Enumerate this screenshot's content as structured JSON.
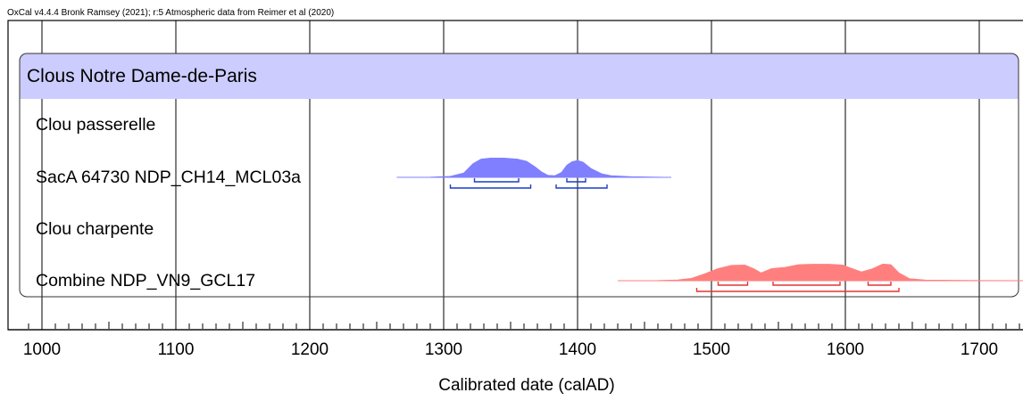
{
  "header_text": "OxCal v4.4.4 Bronk Ramsey (2021); r:5 Atmospheric data from Reimer et al (2020)",
  "chart_data": {
    "type": "multiplot",
    "xlabel": "Calibrated date (calAD)",
    "xlim": [
      980,
      1740
    ],
    "xticks": [
      1000,
      1100,
      1200,
      1300,
      1400,
      1500,
      1600,
      1700
    ],
    "tick_labels": [
      "1000",
      "1100",
      "1200",
      "1300",
      "1400",
      "1500",
      "1600",
      "1700"
    ],
    "grid": true,
    "group": {
      "label": "Clous Notre Dame-de-Paris",
      "color": "#ccccff"
    },
    "rows": [
      {
        "label": "Clou passerelle",
        "kind": "header"
      },
      {
        "label": "SacA 64730 NDP_CH14_MCL03a",
        "kind": "distribution",
        "color": "#7f7fff",
        "bracket_color": "#1a3ccc",
        "density": [
          [
            1265,
            0
          ],
          [
            1290,
            0.01
          ],
          [
            1305,
            0.05
          ],
          [
            1315,
            0.22
          ],
          [
            1322,
            0.7
          ],
          [
            1328,
            0.93
          ],
          [
            1335,
            0.98
          ],
          [
            1345,
            0.98
          ],
          [
            1355,
            0.93
          ],
          [
            1362,
            0.82
          ],
          [
            1368,
            0.55
          ],
          [
            1373,
            0.28
          ],
          [
            1378,
            0.1
          ],
          [
            1383,
            0.08
          ],
          [
            1388,
            0.25
          ],
          [
            1392,
            0.62
          ],
          [
            1396,
            0.8
          ],
          [
            1400,
            0.86
          ],
          [
            1404,
            0.78
          ],
          [
            1410,
            0.45
          ],
          [
            1418,
            0.18
          ],
          [
            1425,
            0.08
          ],
          [
            1440,
            0.03
          ],
          [
            1470,
            0
          ]
        ],
        "hpd_68": [
          [
            1323,
            1356
          ],
          [
            1392,
            1406
          ]
        ],
        "hpd_95": [
          [
            1305,
            1365
          ],
          [
            1384,
            1422
          ]
        ]
      },
      {
        "label": "Clou charpente",
        "kind": "header"
      },
      {
        "label": "Combine NDP_VN9_GCL17",
        "kind": "distribution",
        "color": "#ff7f7f",
        "bracket_color": "#e63333",
        "density": [
          [
            1430,
            0
          ],
          [
            1460,
            0.01
          ],
          [
            1475,
            0.04
          ],
          [
            1485,
            0.12
          ],
          [
            1495,
            0.35
          ],
          [
            1505,
            0.62
          ],
          [
            1515,
            0.78
          ],
          [
            1525,
            0.8
          ],
          [
            1532,
            0.6
          ],
          [
            1537,
            0.4
          ],
          [
            1545,
            0.62
          ],
          [
            1555,
            0.68
          ],
          [
            1565,
            0.82
          ],
          [
            1575,
            0.84
          ],
          [
            1588,
            0.84
          ],
          [
            1598,
            0.8
          ],
          [
            1605,
            0.62
          ],
          [
            1612,
            0.45
          ],
          [
            1620,
            0.6
          ],
          [
            1628,
            0.85
          ],
          [
            1634,
            0.82
          ],
          [
            1640,
            0.4
          ],
          [
            1648,
            0.1
          ],
          [
            1660,
            0.03
          ],
          [
            1700,
            0.01
          ],
          [
            1740,
            0
          ]
        ],
        "hpd_68": [
          [
            1505,
            1527
          ],
          [
            1546,
            1596
          ],
          [
            1617,
            1634
          ]
        ],
        "hpd_95": [
          [
            1489,
            1640
          ]
        ]
      }
    ]
  }
}
